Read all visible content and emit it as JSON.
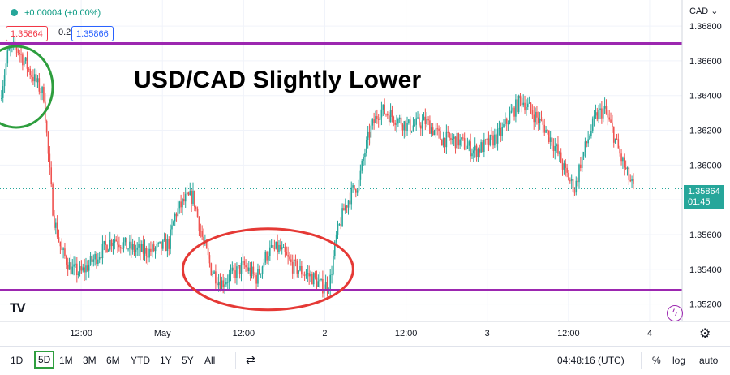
{
  "header": {
    "change": "+0.00004 (+0.00%)",
    "sell_price": "1.35864",
    "spread": "0.2",
    "buy_price": "1.35866"
  },
  "overlay_title": "USD/CAD Slightly Lower",
  "currency": "CAD",
  "last_price": {
    "value": "1.35864",
    "countdown": "01:45"
  },
  "toolbar": {
    "timeframes": [
      "1D",
      "5D",
      "1M",
      "3M",
      "6M",
      "YTD",
      "1Y",
      "5Y",
      "All"
    ],
    "active_timeframe": "5D",
    "clock": "04:48:16 (UTC)",
    "percent_label": "%",
    "log_label": "log",
    "auto_label": "auto"
  },
  "icons": {
    "logo": "tradingview-logo-icon",
    "bolt": "lightning-icon",
    "settings": "gear-icon",
    "compare": "compare-icon",
    "currency_menu": "chevron-down-icon"
  },
  "colors": {
    "up": "#26a69a",
    "down": "#ef5350",
    "level_line": "#9c27b0",
    "circle_green": "#2e9e3e",
    "circle_red": "#e53935"
  },
  "chart_data": {
    "type": "candlestick",
    "symbol_pair": "USD/CAD",
    "y_ticks": [
      1.368,
      1.366,
      1.364,
      1.362,
      1.36,
      1.358,
      1.356,
      1.354,
      1.352
    ],
    "y_tick_labels": [
      "1.36800",
      "1.36600",
      "1.36400",
      "1.36200",
      "1.36000",
      "",
      "1.35600",
      "1.35400",
      "1.35200"
    ],
    "x_ticks": [
      {
        "label": "12:00",
        "t": 0.5
      },
      {
        "label": "May",
        "t": 1.0
      },
      {
        "label": "12:00",
        "t": 1.5
      },
      {
        "label": "2",
        "t": 2.0
      },
      {
        "label": "12:00",
        "t": 2.5
      },
      {
        "label": "3",
        "t": 3.0
      },
      {
        "label": "12:00",
        "t": 3.5
      },
      {
        "label": "4",
        "t": 4.0
      }
    ],
    "x_range": [
      0.0,
      4.2
    ],
    "y_range": [
      1.351,
      1.3695
    ],
    "horizontal_levels": [
      1.367,
      1.3528
    ],
    "last_value": 1.35864,
    "price_path": [
      [
        0.0,
        1.3638
      ],
      [
        0.05,
        1.3665
      ],
      [
        0.1,
        1.3668
      ],
      [
        0.16,
        1.3658
      ],
      [
        0.22,
        1.3648
      ],
      [
        0.27,
        1.364
      ],
      [
        0.3,
        1.3602
      ],
      [
        0.33,
        1.357
      ],
      [
        0.38,
        1.355
      ],
      [
        0.44,
        1.354
      ],
      [
        0.5,
        1.3538
      ],
      [
        0.57,
        1.3545
      ],
      [
        0.62,
        1.355
      ],
      [
        0.7,
        1.3558
      ],
      [
        0.8,
        1.3552
      ],
      [
        0.9,
        1.355
      ],
      [
        0.98,
        1.3552
      ],
      [
        1.04,
        1.3555
      ],
      [
        1.08,
        1.3572
      ],
      [
        1.14,
        1.358
      ],
      [
        1.19,
        1.3582
      ],
      [
        1.24,
        1.356
      ],
      [
        1.3,
        1.354
      ],
      [
        1.36,
        1.3532
      ],
      [
        1.42,
        1.3536
      ],
      [
        1.5,
        1.3542
      ],
      [
        1.58,
        1.3535
      ],
      [
        1.65,
        1.355
      ],
      [
        1.72,
        1.3552
      ],
      [
        1.8,
        1.3542
      ],
      [
        1.87,
        1.3538
      ],
      [
        1.93,
        1.3535
      ],
      [
        1.98,
        1.353
      ],
      [
        2.03,
        1.3532
      ],
      [
        2.07,
        1.3558
      ],
      [
        2.12,
        1.3575
      ],
      [
        2.17,
        1.3585
      ],
      [
        2.21,
        1.359
      ],
      [
        2.24,
        1.3605
      ],
      [
        2.28,
        1.362
      ],
      [
        2.34,
        1.3632
      ],
      [
        2.42,
        1.3628
      ],
      [
        2.52,
        1.3622
      ],
      [
        2.62,
        1.3625
      ],
      [
        2.72,
        1.3615
      ],
      [
        2.82,
        1.3614
      ],
      [
        2.92,
        1.3608
      ],
      [
        3.0,
        1.3612
      ],
      [
        3.08,
        1.3618
      ],
      [
        3.15,
        1.363
      ],
      [
        3.21,
        1.3638
      ],
      [
        3.28,
        1.363
      ],
      [
        3.35,
        1.3622
      ],
      [
        3.42,
        1.361
      ],
      [
        3.48,
        1.3596
      ],
      [
        3.54,
        1.3586
      ],
      [
        3.57,
        1.36
      ],
      [
        3.62,
        1.3615
      ],
      [
        3.67,
        1.3628
      ],
      [
        3.72,
        1.3632
      ],
      [
        3.77,
        1.362
      ],
      [
        3.82,
        1.3605
      ],
      [
        3.86,
        1.3595
      ],
      [
        3.9,
        1.35864
      ]
    ],
    "annotations": [
      {
        "shape": "ellipse",
        "color": "green",
        "around_t": 0.1,
        "around_price": 1.3645
      },
      {
        "shape": "ellipse",
        "color": "red",
        "around_t": 1.65,
        "around_price": 1.354
      }
    ]
  }
}
